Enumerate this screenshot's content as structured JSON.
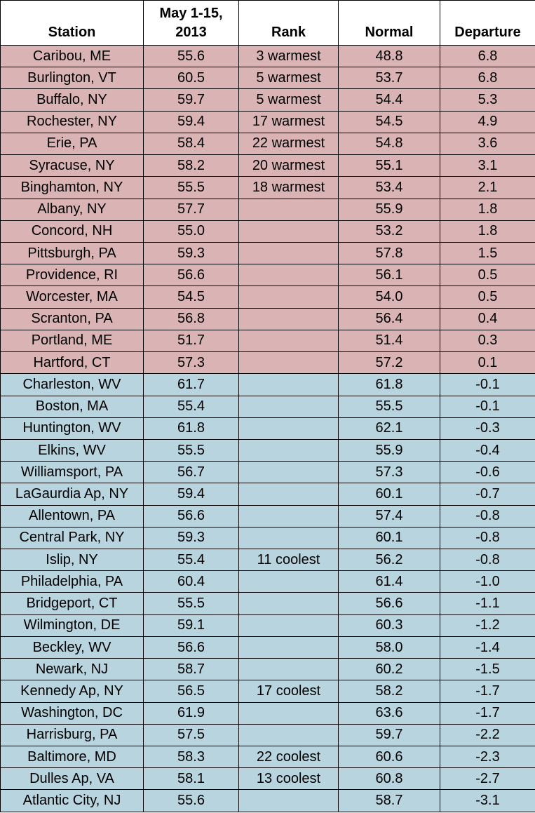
{
  "table": {
    "header": [
      "Station",
      "May 1-15,\n2013",
      "Rank",
      "Normal",
      "Departure"
    ],
    "groups": [
      {
        "color": "#dab4b5",
        "rows": [
          [
            "Caribou, ME",
            "55.6",
            "3 warmest",
            "48.8",
            "6.8"
          ],
          [
            "Burlington, VT",
            "60.5",
            "5 warmest",
            "53.7",
            "6.8"
          ],
          [
            "Buffalo, NY",
            "59.7",
            "5 warmest",
            "54.4",
            "5.3"
          ],
          [
            "Rochester, NY",
            "59.4",
            "17 warmest",
            "54.5",
            "4.9"
          ],
          [
            "Erie, PA",
            "58.4",
            "22 warmest",
            "54.8",
            "3.6"
          ],
          [
            "Syracuse, NY",
            "58.2",
            "20 warmest",
            "55.1",
            "3.1"
          ],
          [
            "Binghamton, NY",
            "55.5",
            "18 warmest",
            "53.4",
            "2.1"
          ],
          [
            "Albany, NY",
            "57.7",
            null,
            "55.9",
            "1.8"
          ],
          [
            "Concord, NH",
            "55.0",
            null,
            "53.2",
            "1.8"
          ],
          [
            "Pittsburgh, PA",
            "59.3",
            null,
            "57.8",
            "1.5"
          ],
          [
            "Providence, RI",
            "56.6",
            null,
            "56.1",
            "0.5"
          ],
          [
            "Worcester, MA",
            "54.5",
            null,
            "54.0",
            "0.5"
          ],
          [
            "Scranton, PA",
            "56.8",
            null,
            "56.4",
            "0.4"
          ],
          [
            "Portland, ME",
            "51.7",
            null,
            "51.4",
            "0.3"
          ],
          [
            "Hartford, CT",
            "57.3",
            null,
            "57.2",
            "0.1"
          ]
        ]
      },
      {
        "color": "#b8d4df",
        "rows": [
          [
            "Charleston, WV",
            "61.7",
            null,
            "61.8",
            "-0.1"
          ],
          [
            "Boston, MA",
            "55.4",
            null,
            "55.5",
            "-0.1"
          ],
          [
            "Huntington, WV",
            "61.8",
            null,
            "62.1",
            "-0.3"
          ],
          [
            "Elkins, WV",
            "55.5",
            null,
            "55.9",
            "-0.4"
          ],
          [
            "Williamsport, PA",
            "56.7",
            null,
            "57.3",
            "-0.6"
          ],
          [
            "LaGaurdia Ap, NY",
            "59.4",
            null,
            "60.1",
            "-0.7"
          ],
          [
            "Allentown, PA",
            "56.6",
            null,
            "57.4",
            "-0.8"
          ],
          [
            "Central Park, NY",
            "59.3",
            null,
            "60.1",
            "-0.8"
          ],
          [
            "Islip, NY",
            "55.4",
            "11 coolest",
            "56.2",
            "-0.8"
          ],
          [
            "Philadelphia, PA",
            "60.4",
            null,
            "61.4",
            "-1.0"
          ],
          [
            "Bridgeport, CT",
            "55.5",
            null,
            "56.6",
            "-1.1"
          ],
          [
            "Wilmington, DE",
            "59.1",
            null,
            "60.3",
            "-1.2"
          ],
          [
            "Beckley, WV",
            "56.6",
            null,
            "58.0",
            "-1.4"
          ],
          [
            "Newark, NJ",
            "58.7",
            null,
            "60.2",
            "-1.5"
          ],
          [
            "Kennedy Ap, NY",
            "56.5",
            "17 coolest",
            "58.2",
            "-1.7"
          ],
          [
            "Washington, DC",
            "61.9",
            null,
            "63.6",
            "-1.7"
          ],
          [
            "Harrisburg, PA",
            "57.5",
            null,
            "59.7",
            "-2.2"
          ],
          [
            "Baltimore, MD",
            "58.3",
            "22 coolest",
            "60.6",
            "-2.3"
          ],
          [
            "Dulles Ap, VA",
            "58.1",
            "13 coolest",
            "60.8",
            "-2.7"
          ],
          [
            "Atlantic City, NJ",
            "55.6",
            null,
            "58.7",
            "-3.1"
          ]
        ]
      }
    ]
  }
}
